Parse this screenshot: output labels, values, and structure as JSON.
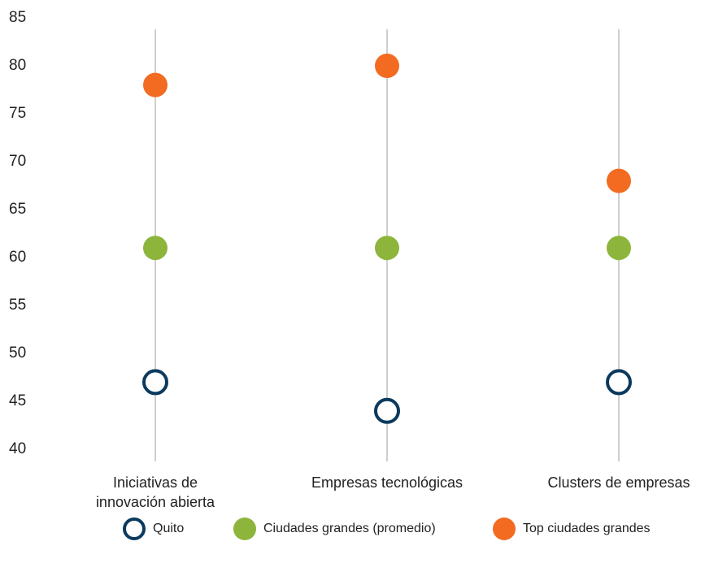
{
  "chart_data": {
    "type": "scatter",
    "categories": [
      [
        "Iniciativas de",
        "innovación abierta"
      ],
      [
        "Empresas tecnológicas"
      ],
      [
        "Clusters de empresas"
      ]
    ],
    "ylim": [
      40,
      85
    ],
    "yticks": [
      40,
      45,
      50,
      55,
      60,
      65,
      70,
      75,
      80,
      85
    ],
    "grid": "vertical lines per category",
    "legend_position": "bottom",
    "series": [
      {
        "name": "Quito",
        "values": [
          47,
          44,
          47
        ],
        "color": "#0b3a5e",
        "marker": "hollow-circle"
      },
      {
        "name": "Ciudades grandes (promedio)",
        "values": [
          61,
          61,
          61
        ],
        "color": "#8db53c",
        "marker": "filled-circle"
      },
      {
        "name": "Top ciudades grandes",
        "values": [
          78,
          80,
          68
        ],
        "color": "#f26b21",
        "marker": "filled-circle"
      }
    ]
  }
}
